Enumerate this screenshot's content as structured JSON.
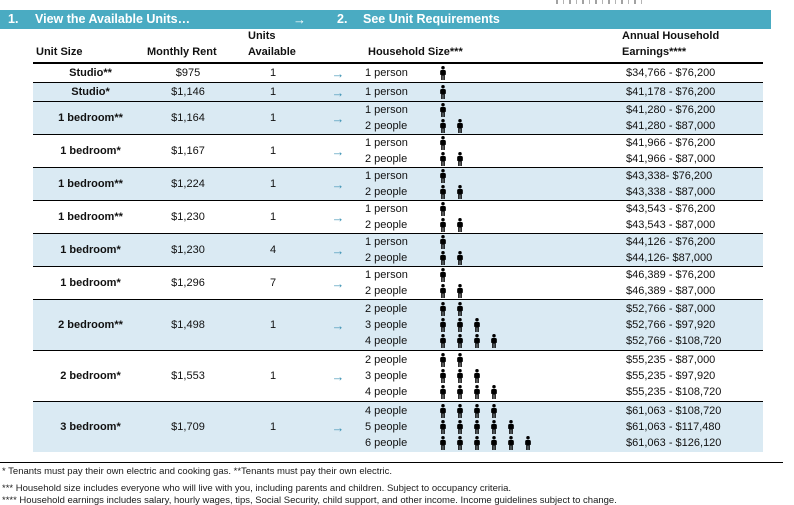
{
  "header_bar": {
    "step1_number": "1.",
    "step1_label": "View the Available Units…",
    "arrow": "→",
    "step2_number": "2.",
    "step2_label": "See Unit Requirements"
  },
  "table": {
    "headers": {
      "unit_size": "Unit Size",
      "monthly_rent": "Monthly Rent",
      "units_line1": "Units",
      "units_line2": "Available",
      "household_size": "Household Size***",
      "annual_line1": "Annual Household",
      "annual_line2": "Earnings****"
    },
    "row_arrow": "→",
    "rows": [
      {
        "unit": "Studio**",
        "rent": "$975",
        "available": "1",
        "shaded": false,
        "tiers": [
          {
            "label": "1 person",
            "persons": 1,
            "earnings": "$34,766 - $76,200"
          }
        ]
      },
      {
        "unit": "Studio*",
        "rent": "$1,146",
        "available": "1",
        "shaded": true,
        "tiers": [
          {
            "label": "1 person",
            "persons": 1,
            "earnings": "$41,178 - $76,200"
          }
        ]
      },
      {
        "unit": "1 bedroom**",
        "rent": "$1,164",
        "available": "1",
        "shaded": true,
        "tiers": [
          {
            "label": "1 person",
            "persons": 1,
            "earnings": "$41,280 - $76,200"
          },
          {
            "label": "2 people",
            "persons": 2,
            "earnings": "$41,280 - $87,000"
          }
        ]
      },
      {
        "unit": "1 bedroom*",
        "rent": "$1,167",
        "available": "1",
        "shaded": false,
        "tiers": [
          {
            "label": "1 person",
            "persons": 1,
            "earnings": "$41,966 - $76,200"
          },
          {
            "label": "2 people",
            "persons": 2,
            "earnings": "$41,966 - $87,000"
          }
        ]
      },
      {
        "unit": "1 bedroom**",
        "rent": "$1,224",
        "available": "1",
        "shaded": true,
        "tiers": [
          {
            "label": "1 person",
            "persons": 1,
            "earnings": "$43,338- $76,200"
          },
          {
            "label": "2 people",
            "persons": 2,
            "earnings": "$43,338 - $87,000"
          }
        ]
      },
      {
        "unit": "1 bedroom**",
        "rent": "$1,230",
        "available": "1",
        "shaded": false,
        "tiers": [
          {
            "label": "1 person",
            "persons": 1,
            "earnings": "$43,543 - $76,200"
          },
          {
            "label": "2 people",
            "persons": 2,
            "earnings": "$43,543 - $87,000"
          }
        ]
      },
      {
        "unit": "1 bedroom*",
        "rent": "$1,230",
        "available": "4",
        "shaded": true,
        "tiers": [
          {
            "label": "1 person",
            "persons": 1,
            "earnings": "$44,126 - $76,200"
          },
          {
            "label": "2 people",
            "persons": 2,
            "earnings": "$44,126- $87,000"
          }
        ]
      },
      {
        "unit": "1 bedroom*",
        "rent": "$1,296",
        "available": "7",
        "shaded": false,
        "tiers": [
          {
            "label": "1 person",
            "persons": 1,
            "earnings": "$46,389 - $76,200"
          },
          {
            "label": "2 people",
            "persons": 2,
            "earnings": "$46,389 - $87,000"
          }
        ]
      },
      {
        "unit": "2 bedroom**",
        "rent": "$1,498",
        "available": "1",
        "shaded": true,
        "tiers": [
          {
            "label": "2 people",
            "persons": 2,
            "earnings": "$52,766 - $87,000"
          },
          {
            "label": "3 people",
            "persons": 3,
            "earnings": "$52,766 - $97,920"
          },
          {
            "label": "4 people",
            "persons": 4,
            "earnings": "$52,766 - $108,720"
          }
        ]
      },
      {
        "unit": "2 bedroom*",
        "rent": "$1,553",
        "available": "1",
        "shaded": false,
        "tiers": [
          {
            "label": "2 people",
            "persons": 2,
            "earnings": "$55,235 - $87,000"
          },
          {
            "label": "3 people",
            "persons": 3,
            "earnings": "$55,235 - $97,920"
          },
          {
            "label": "4 people",
            "persons": 4,
            "earnings": "$55,235 - $108,720"
          }
        ]
      },
      {
        "unit": "3 bedroom*",
        "rent": "$1,709",
        "available": "1",
        "shaded": true,
        "tiers": [
          {
            "label": "4 people",
            "persons": 4,
            "earnings": "$61,063 - $108,720"
          },
          {
            "label": "5 people",
            "persons": 5,
            "earnings": "$61,063 - $117,480"
          },
          {
            "label": "6 people",
            "persons": 6,
            "earnings": "$61,063 - $126,120"
          }
        ]
      }
    ]
  },
  "footnotes": [
    "* Tenants must pay their own electric and cooking gas. **Tenants must pay their own electric.",
    "*** Household size includes everyone who will live with you, including parents and children. Subject to occupancy criteria.",
    "**** Household earnings includes salary, hourly wages, tips, Social Security, child support, and other income. Income guidelines subject to change."
  ],
  "colors": {
    "bar_teal": "#4AABC2",
    "row_blue": "#DAEAF3",
    "arrow_teal": "#3E93B4",
    "person_icon": "#000000"
  }
}
